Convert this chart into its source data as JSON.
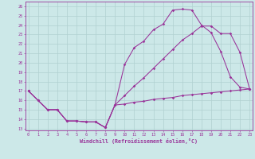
{
  "xlabel": "Windchill (Refroidissement éolien,°C)",
  "xlim": [
    -0.3,
    23.3
  ],
  "ylim": [
    12.8,
    26.5
  ],
  "xticks": [
    0,
    1,
    2,
    3,
    4,
    5,
    6,
    7,
    8,
    9,
    10,
    11,
    12,
    13,
    14,
    15,
    16,
    17,
    18,
    19,
    20,
    21,
    22,
    23
  ],
  "yticks": [
    13,
    14,
    15,
    16,
    17,
    18,
    19,
    20,
    21,
    22,
    23,
    24,
    25,
    26
  ],
  "bg_color": "#cce8e8",
  "grid_color": "#b0d0d0",
  "line_color": "#993399",
  "line1_x": [
    0,
    1,
    2,
    3,
    4,
    5,
    6,
    7,
    8,
    9,
    10,
    11,
    12,
    13,
    14,
    15,
    16,
    17,
    18,
    19,
    20,
    21,
    22,
    23
  ],
  "line1_y": [
    17.0,
    16.0,
    15.0,
    15.0,
    13.8,
    13.8,
    13.7,
    13.7,
    13.1,
    15.5,
    15.6,
    15.8,
    15.9,
    16.1,
    16.2,
    16.3,
    16.5,
    16.6,
    16.7,
    16.8,
    16.9,
    17.0,
    17.1,
    17.2
  ],
  "line2_x": [
    0,
    1,
    2,
    3,
    4,
    5,
    6,
    7,
    8,
    9,
    10,
    11,
    12,
    13,
    14,
    15,
    16,
    17,
    18,
    19,
    20,
    21,
    22,
    23
  ],
  "line2_y": [
    17.0,
    16.0,
    15.0,
    15.0,
    13.8,
    13.8,
    13.7,
    13.7,
    13.1,
    15.5,
    19.8,
    21.6,
    22.3,
    23.5,
    24.1,
    25.6,
    25.7,
    25.6,
    24.0,
    23.2,
    21.2,
    18.5,
    17.4,
    17.2
  ],
  "line3_x": [
    0,
    1,
    2,
    3,
    4,
    5,
    6,
    7,
    8,
    9,
    10,
    11,
    12,
    13,
    14,
    15,
    16,
    17,
    18,
    19,
    20,
    21,
    22,
    23
  ],
  "line3_y": [
    17.0,
    16.0,
    15.0,
    15.0,
    13.8,
    13.8,
    13.7,
    13.7,
    13.1,
    15.5,
    16.5,
    17.5,
    18.4,
    19.4,
    20.4,
    21.4,
    22.4,
    23.1,
    23.9,
    23.9,
    23.1,
    23.1,
    21.1,
    17.2
  ]
}
